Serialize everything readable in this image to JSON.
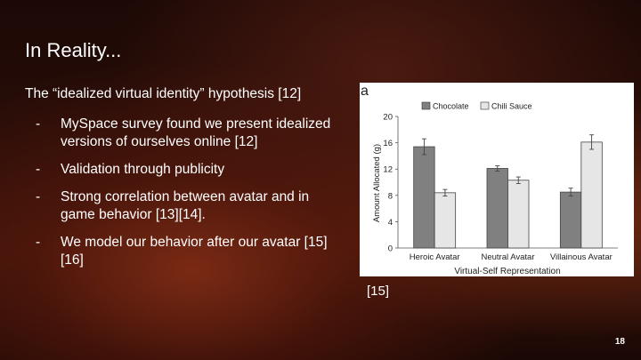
{
  "slide": {
    "title": "In Reality...",
    "subtitle": "The “idealized virtual identity” hypothesis [12]",
    "bullets": [
      "MySpace survey found we present idealized versions of ourselves online [12]",
      "Validation through publicity",
      "Strong correlation between avatar and in game behavior [13][14].",
      "We model our behavior after our avatar [15][16]"
    ],
    "figure_citation": "[15]",
    "page_number": "18"
  },
  "chart_data": {
    "type": "bar",
    "panel_label": "a",
    "categories": [
      "Heroic Avatar",
      "Neutral Avatar",
      "Villainous Avatar"
    ],
    "series": [
      {
        "name": "Chocolate",
        "values": [
          15.4,
          12.1,
          8.5
        ],
        "errors": [
          1.2,
          0.4,
          0.6
        ],
        "color": "#808080"
      },
      {
        "name": "Chili Sauce",
        "values": [
          8.4,
          10.3,
          16.1
        ],
        "errors": [
          0.5,
          0.5,
          1.1
        ],
        "color": "#e6e6e6"
      }
    ],
    "xlabel": "Virtual-Self Representation",
    "ylabel": "Amount Allocated (g)",
    "ylim": [
      0,
      20
    ],
    "yticks": [
      0,
      4,
      8,
      12,
      16,
      20
    ],
    "legend": "top",
    "grid": false
  }
}
